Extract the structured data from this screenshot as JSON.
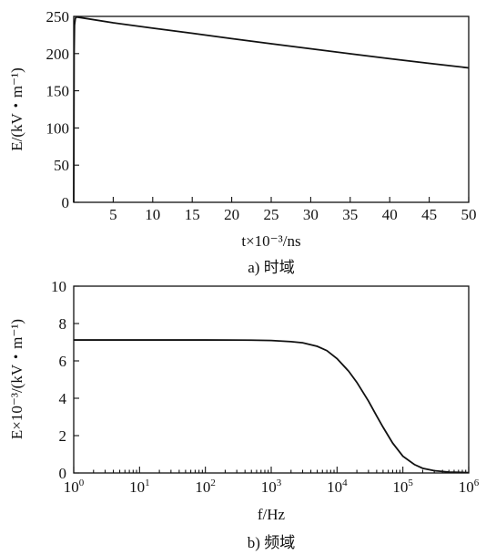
{
  "chart_data": [
    {
      "type": "line",
      "caption": "a) 时域",
      "xlabel": "t×10⁻³/ns",
      "ylabel": "E/(kV・m⁻¹)",
      "xlim": [
        0,
        50
      ],
      "ylim": [
        0,
        250
      ],
      "x_ticks": [
        5,
        10,
        15,
        20,
        25,
        30,
        35,
        40,
        45,
        50
      ],
      "y_ticks": [
        0,
        50,
        100,
        150,
        200,
        250
      ],
      "grid": false,
      "series": [
        {
          "x": [
            0,
            0.05,
            0.1,
            0.2,
            0.3,
            0.5,
            5,
            10,
            15,
            20,
            25,
            30,
            35,
            40,
            45,
            50
          ],
          "values": [
            0,
            200,
            238,
            247,
            249,
            249,
            241.4,
            234.2,
            227.3,
            220.1,
            213.2,
            206.5,
            199.8,
            193.2,
            186.9,
            180.8
          ]
        }
      ]
    },
    {
      "type": "line",
      "caption": "b) 频域",
      "xlabel": "f/Hz",
      "ylabel": "E×10⁻³/(kV・m⁻¹)",
      "xscale": "log",
      "xlim": [
        1,
        1000000
      ],
      "ylim": [
        0,
        10
      ],
      "x_ticks": [
        1,
        10,
        100,
        1000,
        10000,
        100000,
        1000000
      ],
      "x_tick_labels": [
        {
          "base": "10",
          "exp": "0"
        },
        {
          "base": "10",
          "exp": "1"
        },
        {
          "base": "10",
          "exp": "2"
        },
        {
          "base": "10",
          "exp": "3"
        },
        {
          "base": "10",
          "exp": "4"
        },
        {
          "base": "10",
          "exp": "5"
        },
        {
          "base": "10",
          "exp": "6"
        }
      ],
      "y_ticks": [
        0,
        2,
        4,
        6,
        8,
        10
      ],
      "grid": false,
      "series": [
        {
          "x": [
            1,
            10,
            100,
            500,
            1000,
            2000,
            3000,
            5000,
            7000,
            10000,
            15000,
            20000,
            30000,
            40000,
            50000,
            70000,
            100000,
            150000,
            200000,
            300000,
            500000,
            1000000
          ],
          "values": [
            7.12,
            7.12,
            7.12,
            7.11,
            7.09,
            7.03,
            6.97,
            6.78,
            6.55,
            6.12,
            5.45,
            4.85,
            3.85,
            3.05,
            2.45,
            1.6,
            0.9,
            0.45,
            0.25,
            0.12,
            0.05,
            0.02
          ]
        }
      ]
    }
  ]
}
